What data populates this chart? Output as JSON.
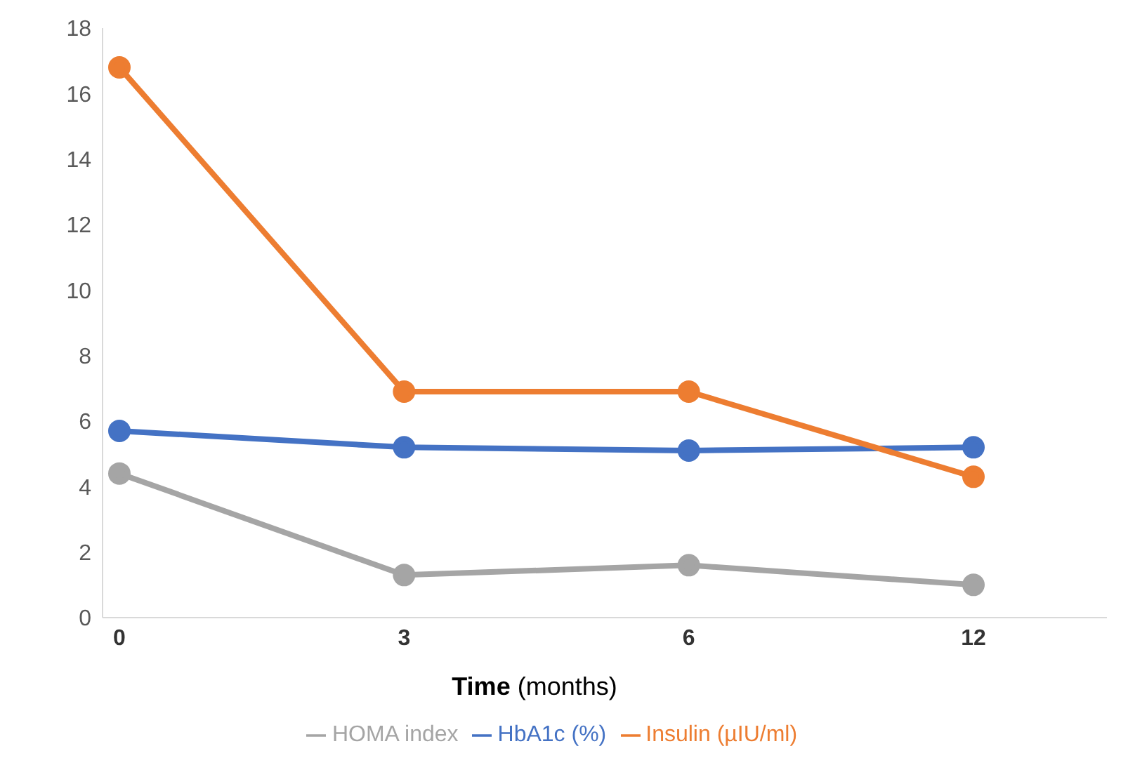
{
  "chart_data": {
    "type": "line",
    "xlabel": "Time (months)",
    "categories": [
      "0",
      "3",
      "6",
      "12"
    ],
    "series": [
      {
        "name": "HbA1c (%)",
        "color": "#4472c4",
        "values": [
          5.7,
          5.2,
          5.1,
          5.2
        ]
      },
      {
        "name": "Insulin (µIU/ml)",
        "color": "#ed7d31",
        "values": [
          16.8,
          6.9,
          6.9,
          4.3
        ]
      },
      {
        "name": "HOMA index",
        "color": "#a5a5a5",
        "values": [
          4.4,
          1.3,
          1.6,
          1.0
        ]
      }
    ],
    "ylim": [
      0,
      18
    ],
    "yticks": [
      0,
      2,
      4,
      6,
      8,
      10,
      12,
      14,
      16,
      18
    ],
    "grid": false,
    "legend": "bottom",
    "marker": "circle",
    "line_style": "solid"
  }
}
